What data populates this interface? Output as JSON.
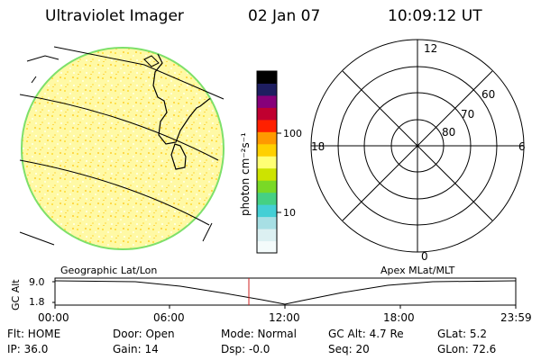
{
  "header": {
    "title": "Ultraviolet Imager",
    "date": "02 Jan 07",
    "time": "10:09:12 UT"
  },
  "colorbar": {
    "unit_label": "photon cm⁻²s⁻¹",
    "ticks": [
      {
        "label": "100",
        "value": 100
      },
      {
        "label": "10",
        "value": 10
      }
    ],
    "colors": [
      "#f4fbfb",
      "#dcf0f2",
      "#a7dfe4",
      "#44cfd5",
      "#45d083",
      "#79d926",
      "#cde300",
      "#ffff75",
      "#ffd000",
      "#ff9900",
      "#ff2000",
      "#c00030",
      "#86007a",
      "#1e1e60",
      "#000000"
    ]
  },
  "geo_map": {
    "fill_color": "#fffaa0",
    "rim_color": "#7de06a",
    "coast_color": "#000000"
  },
  "polar_plot": {
    "labels": {
      "top": "12",
      "bottom": "0",
      "left": "18",
      "right": "6",
      "lat60": "60",
      "lat70": "70",
      "lat80": "80"
    },
    "latitudes": [
      80,
      70,
      60,
      50
    ]
  },
  "altitude_plot": {
    "left_title": "Geographic Lat/Lon",
    "right_title": "Apex MLat/MLT",
    "ylabel": "GC Alt",
    "y_ticks": [
      "9.0",
      "1.8"
    ],
    "x_ticks": [
      "00:00",
      "06:00",
      "12:00",
      "18:00",
      "23:59"
    ],
    "marker_color": "#d02020"
  },
  "info": {
    "flt": "Flt: HOME",
    "ip": "IP: 36.0",
    "door": "Door: Open",
    "gain": "Gain: 14",
    "mode": "Mode: Normal",
    "dsp": "Dsp:    -0.0",
    "gc_alt": "GC Alt: 4.7 Re",
    "seq": "Seq: 20",
    "glat": "GLat:    5.2",
    "glon": "GLon:  72.6"
  }
}
